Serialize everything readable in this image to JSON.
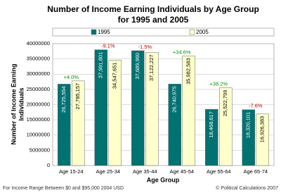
{
  "chart_data": {
    "type": "bar",
    "title": [
      "Number of Income Earning Individuals by Age Group",
      "for 1995 and 2005"
    ],
    "y_label": [
      "Number of Income Earning",
      "Individuals"
    ],
    "x_label": "Age Group",
    "footnote": "For Income Range Between $0 and $95,000 2004 USD",
    "credit": "© Political Calculations 2007",
    "categories": [
      "Age 15-24",
      "Age 25-34",
      "Age 35-44",
      "Age 45-54",
      "Age 55-64",
      "Age 65-74"
    ],
    "series": [
      {
        "name": "1995",
        "color": "#007272",
        "label_color": "#ffffff",
        "values": [
          26725554,
          37991801,
          37689960,
          26740975,
          18468617,
          18320101
        ],
        "value_labels": [
          "26,725,554",
          "37,991,801",
          "37,689,960",
          "26,740,975",
          "18,468,617",
          "18,320,101"
        ]
      },
      {
        "name": "2005",
        "color": "#ffffcc",
        "label_color": "#000000",
        "values": [
          27785157,
          34547651,
          37122227,
          35982583,
          25522799,
          16926383
        ],
        "value_labels": [
          "27,785,157",
          "34,547,651",
          "37,122,227",
          "35,982,583",
          "25,522,799",
          "16,926,383"
        ]
      }
    ],
    "change_labels": [
      "+4.0%",
      "-9.1%",
      "-1.5%",
      "+34.6%",
      "+38.2%",
      "-7.6%"
    ],
    "change_colors": [
      "#009900",
      "#cc0000",
      "#cc0000",
      "#009900",
      "#009900",
      "#cc0000"
    ],
    "ylim": [
      0,
      40000000
    ],
    "yticks": [
      0,
      5000000,
      10000000,
      15000000,
      20000000,
      25000000,
      30000000,
      35000000,
      40000000
    ],
    "grid": true
  }
}
